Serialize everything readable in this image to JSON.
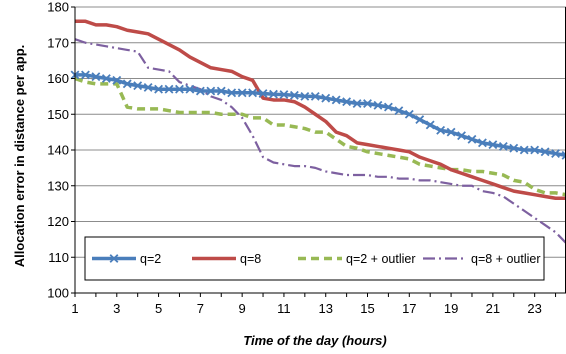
{
  "chart_data": {
    "type": "line",
    "title": "",
    "xlabel": "Time of the day (hours)",
    "ylabel": "Allocation error in distance per app.",
    "xlim": [
      1,
      24.5
    ],
    "ylim": [
      100,
      180
    ],
    "x_ticks": [
      1,
      3,
      5,
      7,
      9,
      11,
      13,
      15,
      17,
      19,
      21,
      23
    ],
    "y_ticks": [
      100,
      110,
      120,
      130,
      140,
      150,
      160,
      170,
      180
    ],
    "grid": "horizontal",
    "legend": "bottom",
    "colors": {
      "q2": "#4a7ebb",
      "q8": "#be4b48",
      "q2_outlier": "#98b954",
      "q8_outlier": "#7d60a0",
      "grid": "#8c8c8c"
    },
    "x": [
      1,
      1.5,
      2,
      2.5,
      3,
      3.5,
      4,
      4.5,
      5,
      5.5,
      6,
      6.5,
      7,
      7.5,
      8,
      8.5,
      9,
      9.5,
      10,
      10.5,
      11,
      11.5,
      12,
      12.5,
      13,
      13.5,
      14,
      14.5,
      15,
      15.5,
      16,
      16.5,
      17,
      17.5,
      18,
      18.5,
      19,
      19.5,
      20,
      20.5,
      21,
      21.5,
      22,
      22.5,
      23,
      23.5,
      24,
      24.5
    ],
    "series": [
      {
        "name": "q=2",
        "style": "solid-x-markers",
        "values": [
          161,
          161,
          160.5,
          160,
          159.5,
          158.5,
          158,
          157.5,
          157,
          157,
          157,
          157,
          156.5,
          156.5,
          156.5,
          156,
          156,
          156,
          155.8,
          155.6,
          155.5,
          155.3,
          155,
          155,
          154.5,
          154,
          153.5,
          153,
          153,
          152.5,
          152,
          151,
          150,
          148.5,
          147,
          145.5,
          145,
          144,
          143,
          142,
          141.5,
          141,
          140.5,
          140,
          140,
          139.5,
          139,
          138.5
        ]
      },
      {
        "name": "q=8",
        "style": "solid",
        "values": [
          176,
          176,
          175,
          175,
          174.5,
          173.5,
          173,
          172.5,
          171,
          169.5,
          168,
          166,
          164.5,
          163,
          162.5,
          162,
          160.5,
          159.5,
          154.5,
          154,
          154,
          153.5,
          152,
          150,
          148,
          145,
          144,
          142,
          141.5,
          141,
          140.5,
          140,
          139.5,
          138,
          137,
          136,
          134.5,
          133.5,
          132.5,
          131.5,
          130.5,
          129.5,
          128.5,
          128,
          127.5,
          127,
          126.5,
          126.5
        ]
      },
      {
        "name": "q=2 + outlier",
        "style": "dashed",
        "values": [
          160,
          159,
          158.5,
          158.5,
          158.5,
          152,
          151.5,
          151.5,
          151.5,
          151,
          150.5,
          150.5,
          150.5,
          150.5,
          150,
          150,
          150,
          149,
          149,
          147,
          147,
          146.5,
          146,
          145,
          145,
          143,
          141,
          140.5,
          139.5,
          139,
          138.5,
          138,
          137.5,
          136,
          135.5,
          135,
          134.5,
          134.5,
          134,
          134,
          133.5,
          133,
          131.5,
          131,
          129,
          128,
          128,
          127.5
        ]
      },
      {
        "name": "q=8 + outlier",
        "style": "dash-dot",
        "values": [
          171,
          170,
          169.5,
          169,
          168.5,
          168,
          167.5,
          163,
          162.5,
          162,
          159,
          158,
          157,
          155,
          154,
          152,
          149,
          144,
          138,
          136.5,
          136,
          135.5,
          135.5,
          135,
          134,
          133.5,
          133,
          133,
          133,
          132.5,
          132.5,
          132,
          132,
          131.5,
          131.5,
          131,
          130.5,
          130,
          130,
          128.5,
          128,
          127,
          125,
          123,
          121,
          119,
          117,
          114
        ]
      }
    ]
  }
}
